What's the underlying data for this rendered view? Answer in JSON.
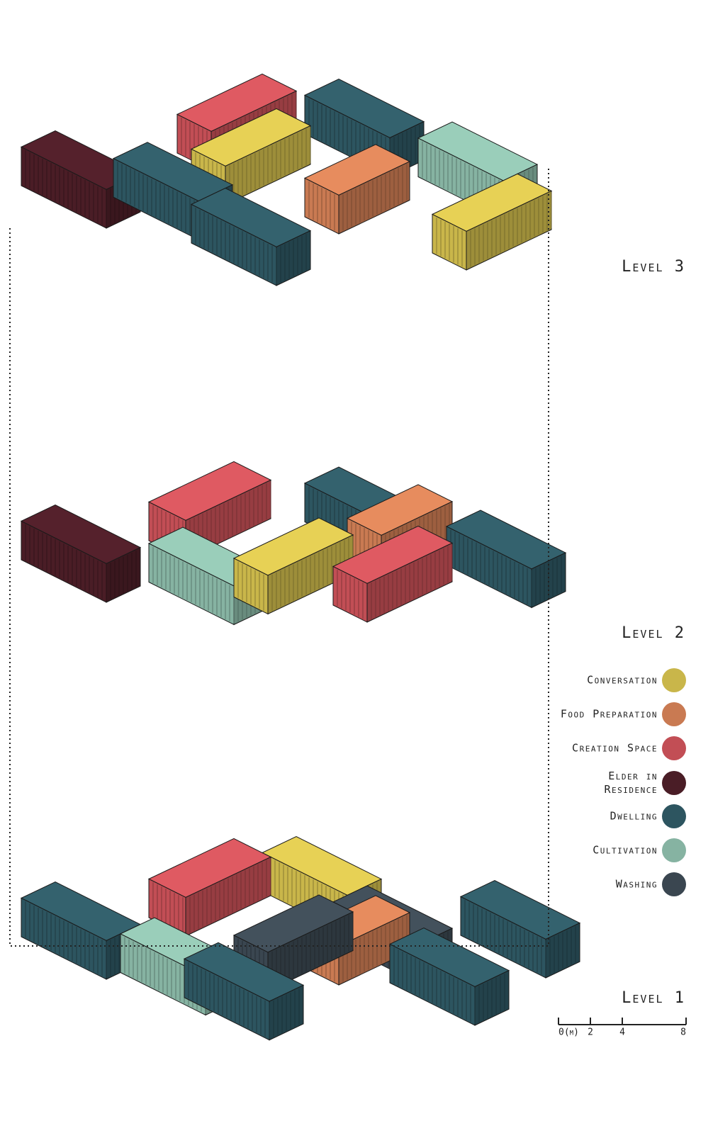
{
  "levels": [
    "Level 3",
    "Level 2",
    "Level 1"
  ],
  "legend": {
    "items": [
      {
        "lines": [
          "Conversation"
        ],
        "color": "#c9b64a"
      },
      {
        "lines": [
          "Food Preparation"
        ],
        "color": "#c97a52"
      },
      {
        "lines": [
          "Creation Space"
        ],
        "color": "#c24e55"
      },
      {
        "lines": [
          "Elder in",
          "Residence"
        ],
        "color": "#4a1d26"
      },
      {
        "lines": [
          "Dwelling"
        ],
        "color": "#2d5560"
      },
      {
        "lines": [
          "Cultivation"
        ],
        "color": "#86b3a2"
      },
      {
        "lines": [
          "Washing"
        ],
        "color": "#3a4650"
      }
    ]
  },
  "scale": {
    "ticks": [
      {
        "value": 0,
        "label": "0(m)"
      },
      2,
      4,
      8
    ]
  }
}
